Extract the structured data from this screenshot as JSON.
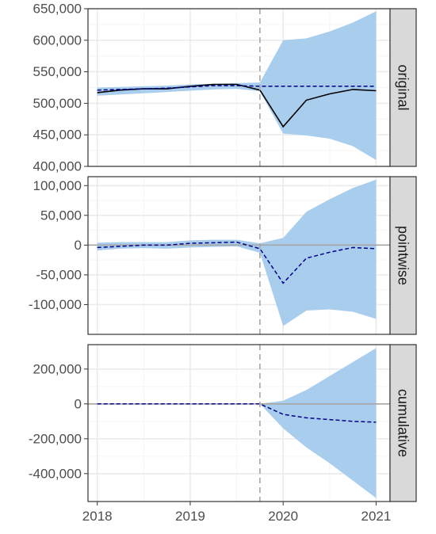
{
  "chart_data": {
    "type": "line",
    "x_ticks": [
      2018,
      2019,
      2020,
      2021
    ],
    "x_tick_labels": [
      "2018",
      "2019",
      "2020",
      "2021"
    ],
    "xlim": [
      2017.9,
      2021.15
    ],
    "intervention_x": 2019.75,
    "colors": {
      "band": "#a9cdec",
      "observed": "#000000",
      "predicted": "#00008b",
      "intervention": "#a6a6a6",
      "zero_line": "#a6a6a6",
      "grid_major": "#ebebeb",
      "grid_minor": "#f5f5f5",
      "strip_fill": "#d9d9d9",
      "frame": "#333333"
    },
    "x": [
      2018.0,
      2018.25,
      2018.5,
      2018.75,
      2019.0,
      2019.25,
      2019.5,
      2019.75,
      2020.0,
      2020.25,
      2020.5,
      2020.75,
      2021.0
    ],
    "panels": [
      {
        "strip": "original",
        "ylim": [
          400000,
          650000
        ],
        "y_ticks": [
          400000,
          450000,
          500000,
          550000,
          600000,
          650000
        ],
        "y_tick_labels": [
          "400,000",
          "450,000",
          "500,000",
          "550,000",
          "600,000",
          "650,000"
        ],
        "zero_line": false,
        "band_lower": [
          512000,
          514000,
          516000,
          518000,
          520000,
          522000,
          523000,
          519000,
          452000,
          449000,
          444000,
          432000,
          410000
        ],
        "band_upper": [
          525000,
          526000,
          527000,
          528000,
          530000,
          531000,
          532000,
          533000,
          600000,
          603000,
          614000,
          628000,
          646000
        ],
        "observed": [
          517000,
          521000,
          523000,
          523000,
          527000,
          530000,
          530000,
          521000,
          463000,
          505000,
          515000,
          522000,
          520000
        ],
        "predicted": [
          521000,
          522000,
          523000,
          524000,
          526000,
          528000,
          528000,
          527000,
          527000,
          527000,
          527000,
          527000,
          527000
        ]
      },
      {
        "strip": "pointwise",
        "ylim": [
          -150000,
          115000
        ],
        "y_ticks": [
          -100000,
          -50000,
          0,
          50000,
          100000
        ],
        "y_tick_labels": [
          "-100,000",
          "-50,000",
          "0",
          "50,000",
          "100,000"
        ],
        "zero_line": true,
        "band_lower": [
          -9000,
          -6000,
          -5000,
          -6000,
          -4000,
          -3000,
          -2000,
          -13000,
          -136000,
          -110000,
          -108000,
          -112000,
          -124000
        ],
        "band_upper": [
          4000,
          5000,
          5000,
          5000,
          8000,
          9000,
          9000,
          3000,
          12000,
          56000,
          77000,
          96000,
          110000
        ],
        "observed": null,
        "predicted": [
          -4000,
          -2000,
          0,
          0,
          3000,
          4000,
          5000,
          -6000,
          -64000,
          -22000,
          -12000,
          -4000,
          -6000
        ]
      },
      {
        "strip": "cumulative",
        "ylim": [
          -560000,
          340000
        ],
        "y_ticks": [
          -400000,
          -200000,
          0,
          200000
        ],
        "y_tick_labels": [
          "-400,000",
          "-200,000",
          "0",
          "200,000"
        ],
        "zero_line": true,
        "band_lower": [
          0,
          0,
          0,
          0,
          0,
          0,
          0,
          0,
          -140000,
          -250000,
          -340000,
          -440000,
          -540000
        ],
        "band_upper": [
          0,
          0,
          0,
          0,
          0,
          0,
          0,
          0,
          18000,
          80000,
          160000,
          240000,
          320000
        ],
        "observed": null,
        "predicted": [
          0,
          0,
          0,
          0,
          0,
          0,
          0,
          0,
          -60000,
          -80000,
          -90000,
          -100000,
          -105000
        ]
      }
    ]
  }
}
